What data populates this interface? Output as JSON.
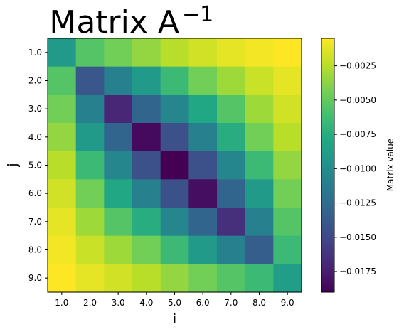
{
  "chart_data": {
    "type": "heatmap",
    "title": "Matrix A",
    "title_superscript": "−1",
    "xlabel": "i",
    "ylabel": "j",
    "x_categories": [
      "1.0",
      "2.0",
      "3.0",
      "4.0",
      "5.0",
      "6.0",
      "7.0",
      "8.0",
      "9.0"
    ],
    "y_categories": [
      "1.0",
      "2.0",
      "3.0",
      "4.0",
      "5.0",
      "6.0",
      "7.0",
      "8.0",
      "9.0"
    ],
    "values": [
      [
        -0.009,
        -0.0055,
        -0.0045,
        -0.0035,
        -0.0025,
        -0.0018,
        -0.0012,
        -0.0008,
        -0.0005
      ],
      [
        -0.0055,
        -0.014,
        -0.011,
        -0.009,
        -0.0065,
        -0.0045,
        -0.0032,
        -0.002,
        -0.0012
      ],
      [
        -0.0045,
        -0.011,
        -0.017,
        -0.013,
        -0.0105,
        -0.008,
        -0.0055,
        -0.0032,
        -0.0018
      ],
      [
        -0.0035,
        -0.009,
        -0.013,
        -0.0185,
        -0.0145,
        -0.011,
        -0.0075,
        -0.0045,
        -0.0025
      ],
      [
        -0.0025,
        -0.0065,
        -0.0105,
        -0.0145,
        -0.019,
        -0.0145,
        -0.0105,
        -0.0065,
        -0.0035
      ],
      [
        -0.0018,
        -0.0045,
        -0.008,
        -0.011,
        -0.0145,
        -0.0183,
        -0.013,
        -0.009,
        -0.0045
      ],
      [
        -0.0012,
        -0.0032,
        -0.0055,
        -0.0075,
        -0.0105,
        -0.013,
        -0.0165,
        -0.011,
        -0.0055
      ],
      [
        -0.0008,
        -0.002,
        -0.0032,
        -0.0045,
        -0.0065,
        -0.009,
        -0.011,
        -0.0135,
        -0.0065
      ],
      [
        -0.0005,
        -0.0012,
        -0.0018,
        -0.0025,
        -0.0035,
        -0.0045,
        -0.0055,
        -0.0065,
        -0.0088
      ]
    ],
    "colormap": "viridis",
    "value_range": [
      -0.019,
      -0.0005
    ],
    "colorbar": {
      "label": "Matrix value",
      "ticks": [
        -0.0025,
        -0.005,
        -0.0075,
        -0.01,
        -0.0125,
        -0.015,
        -0.0175
      ],
      "tick_labels": [
        "−0.0025",
        "−0.0050",
        "−0.0075",
        "−0.0100",
        "−0.0125",
        "−0.0150",
        "−0.0175"
      ]
    },
    "grid": false
  }
}
